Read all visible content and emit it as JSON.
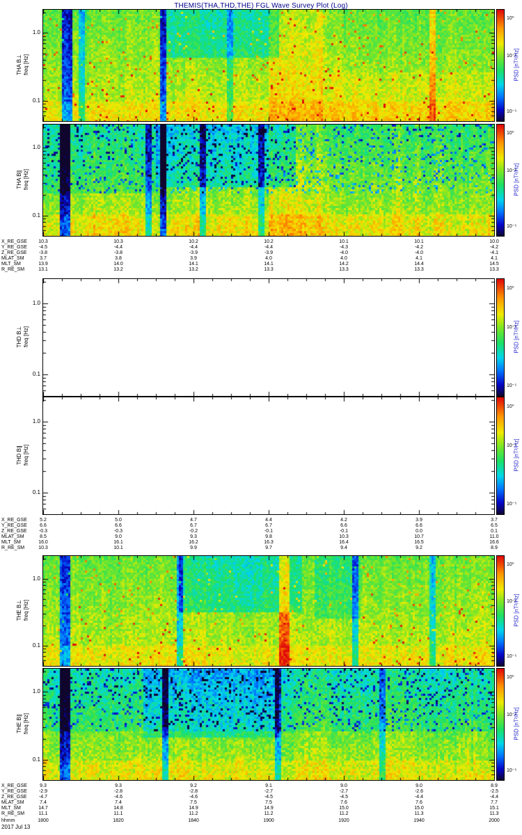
{
  "title": "THEMIS(THA,THD,THE) FGL Wave Survey Plot (Log)",
  "footer": {
    "date": "2017 Jul 13"
  },
  "colors": {
    "title": "#00008B",
    "psd_label": "#2222CC",
    "axis_text": "#000000",
    "frame": "#000000"
  },
  "freq_axis": {
    "unit_label": "freq [Hz]",
    "tick_labels": [
      "1.0",
      "0.1"
    ]
  },
  "colorbar": {
    "label": "PSD [nT²/Hz]",
    "tick_labels": [
      "10⁰",
      "10⁻²",
      "10⁻⁵"
    ]
  },
  "time_axis": {
    "label": "hhmm",
    "tick_labels": [
      "1800",
      "1820",
      "1840",
      "1900",
      "1920",
      "1940",
      "2000"
    ]
  },
  "panels": [
    {
      "id": "tha-bperp",
      "label": "THA B⊥",
      "axis_label": "freq [Hz]",
      "has_data": true
    },
    {
      "id": "tha-bpar",
      "label": "THA B∥",
      "axis_label": "freq [Hz]",
      "has_data": true
    },
    {
      "id": "thd-bperp",
      "label": "THD B⊥",
      "axis_label": "freq [Hz]",
      "has_data": false
    },
    {
      "id": "thd-bpar",
      "label": "THD B∥",
      "axis_label": "freq [Hz]",
      "has_data": false
    },
    {
      "id": "the-bperp",
      "label": "THE B⊥",
      "axis_label": "freq [Hz]",
      "has_data": true
    },
    {
      "id": "the-bpar",
      "label": "THE B∥",
      "axis_label": "freq [Hz]",
      "has_data": true
    }
  ],
  "annotation_blocks": [
    {
      "satellite": "THA",
      "rows": [
        {
          "label": "X_RE_GSE",
          "values": [
            "10.3",
            "10.3",
            "10.2",
            "10.2",
            "10.1",
            "10.1",
            "10.0"
          ]
        },
        {
          "label": "Y_RE_GSE",
          "values": [
            "-4.5",
            "-4.4",
            "-4.4",
            "-4.4",
            "-4.3",
            "-4.2",
            "-4.2"
          ]
        },
        {
          "label": "Z_RE_GSE",
          "values": [
            "-3.8",
            "-3.8",
            "-3.9",
            "-3.9",
            "-4.0",
            "-4.0",
            "-4.1"
          ]
        },
        {
          "label": "MLAT_SM",
          "values": [
            "3.7",
            "3.8",
            "3.9",
            "4.0",
            "4.0",
            "4.1",
            "4.1"
          ]
        },
        {
          "label": "MLT_SM",
          "values": [
            "13.9",
            "14.0",
            "14.1",
            "14.1",
            "14.2",
            "14.4",
            "14.5"
          ]
        },
        {
          "label": "R_RE_SM",
          "values": [
            "13.1",
            "13.2",
            "13.2",
            "13.3",
            "13.3",
            "13.3",
            "13.3"
          ]
        }
      ]
    },
    {
      "satellite": "THD",
      "rows": [
        {
          "label": "X_RE_GSE",
          "values": [
            "5.2",
            "5.0",
            "4.7",
            "4.4",
            "4.2",
            "3.9",
            "3.7"
          ]
        },
        {
          "label": "Y_RE_GSE",
          "values": [
            "6.6",
            "6.6",
            "6.7",
            "6.7",
            "6.6",
            "6.6",
            "6.5"
          ]
        },
        {
          "label": "Z_RE_GSE",
          "values": [
            "-0.3",
            "-0.3",
            "-0.2",
            "-0.1",
            "-0.1",
            "0.0",
            "0.1"
          ]
        },
        {
          "label": "MLAT_SM",
          "values": [
            "8.5",
            "9.0",
            "9.3",
            "9.8",
            "10.3",
            "10.7",
            "11.0"
          ]
        },
        {
          "label": "MLT_SM",
          "values": [
            "16.0",
            "16.1",
            "16.2",
            "16.3",
            "16.4",
            "16.5",
            "16.6"
          ]
        },
        {
          "label": "R_RE_SM",
          "values": [
            "10.3",
            "10.1",
            "9.9",
            "9.7",
            "9.4",
            "9.2",
            "8.9"
          ]
        }
      ]
    },
    {
      "satellite": "THE",
      "rows": [
        {
          "label": "X_RE_GSE",
          "values": [
            "9.3",
            "9.3",
            "9.2",
            "9.1",
            "9.0",
            "9.0",
            "8.9"
          ]
        },
        {
          "label": "Y_RE_GSE",
          "values": [
            "-2.9",
            "-2.8",
            "-2.8",
            "-2.7",
            "-2.7",
            "-2.6",
            "-2.5"
          ]
        },
        {
          "label": "Z_RE_GSE",
          "values": [
            "-4.7",
            "-4.6",
            "-4.6",
            "-4.5",
            "-4.5",
            "-4.4",
            "-4.4"
          ]
        },
        {
          "label": "MLAT_SM",
          "values": [
            "7.4",
            "7.4",
            "7.5",
            "7.5",
            "7.6",
            "7.6",
            "7.7"
          ]
        },
        {
          "label": "MLT_SM",
          "values": [
            "14.7",
            "14.8",
            "14.9",
            "14.9",
            "15.0",
            "15.0",
            "15.1"
          ]
        },
        {
          "label": "R_RE_SM",
          "values": [
            "11.1",
            "11.1",
            "11.2",
            "11.2",
            "11.2",
            "11.3",
            "11.3"
          ]
        }
      ]
    }
  ],
  "chart_data": {
    "type": "heatmap",
    "title": "THEMIS(THA,THD,THE) FGL Wave Survey Plot (Log)",
    "x_axis": {
      "label": "hhmm",
      "date": "2017 Jul 13",
      "ticks": [
        "1800",
        "1820",
        "1840",
        "1900",
        "1920",
        "1940",
        "2000"
      ]
    },
    "y_axis": {
      "label": "freq [Hz]",
      "scale": "log",
      "tick_labels": [
        "1.0",
        "0.1"
      ],
      "range_hz": [
        0.05,
        2.2
      ]
    },
    "z_axis": {
      "label": "PSD [nT²/Hz]",
      "scale": "log",
      "colormap": "rainbow",
      "colorbar_tick_labels": [
        "10⁰",
        "10⁻²",
        "10⁻⁵"
      ]
    },
    "panels": [
      {
        "name": "THA B⊥",
        "has_data": true,
        "description": "Broadband green/yellow PSD with vertical striping; deep blue dropout columns near 1805 and 1830; cyan low-power patch ~1835-1905 above 0.3 Hz; orange enhancement band ~1900-1915; scattered red speckles"
      },
      {
        "name": "THA B∥",
        "has_data": true,
        "description": "Lower PSD overall; dense dark-blue speckling above ~0.3 Hz; deep blue columns near 1805 and 1830; yellow enhancement at lowest frequencies"
      },
      {
        "name": "THD B⊥",
        "has_data": false,
        "description": "No data (blank white panel, axes and colorbar only)"
      },
      {
        "name": "THD B∥",
        "has_data": false,
        "description": "No data (blank white panel, axes and colorbar only)"
      },
      {
        "name": "THE B⊥",
        "has_data": true,
        "description": "Green/yellow PSD; cyan patch ~1840-1905 above 0.3 Hz; narrow red/orange full-height enhancement near 1905; dark blue column near 1805"
      },
      {
        "name": "THE B∥",
        "has_data": true,
        "description": "Blue-speckled upper frequencies, yellow-green at low frequencies; deep blue column near 1805"
      }
    ]
  }
}
